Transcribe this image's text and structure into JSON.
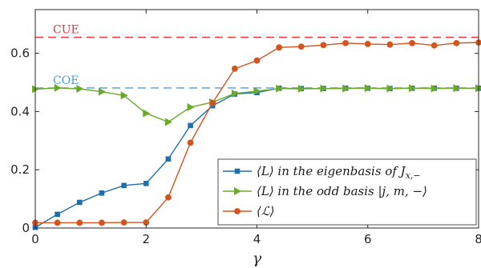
{
  "chart_data": {
    "type": "line",
    "xlabel": "γ",
    "ylabel": "",
    "xlim": [
      0,
      8
    ],
    "ylim": [
      0,
      0.75
    ],
    "xticks": [
      0,
      2,
      4,
      6,
      8
    ],
    "yticks": [
      0,
      0.2,
      0.4,
      0.6
    ],
    "ytick_labels": [
      "0",
      "0.2",
      "0.4",
      "0.6"
    ],
    "grid": false,
    "legend_position": "lower-right",
    "reference_lines": [
      {
        "name": "CUE",
        "y": 0.655,
        "color": "#e8303a",
        "style": "dashed"
      },
      {
        "name": "COE",
        "y": 0.481,
        "color": "#4a9ed6",
        "style": "dashed"
      }
    ],
    "series": [
      {
        "name": "⟨L⟩ in the eigenbasis of J_{x,−}",
        "legend_parts": {
          "main": "⟨L⟩ in the eigenbasis of J",
          "sub": "x,−"
        },
        "color": "#1f6fae",
        "marker": "square",
        "x": [
          0,
          0.4,
          0.8,
          1.2,
          1.6,
          2.0,
          2.4,
          2.8,
          3.2,
          3.6,
          4.0,
          4.4,
          4.8,
          5.2,
          5.6,
          6.0,
          6.4,
          6.8,
          7.2,
          7.6,
          8.0
        ],
        "y": [
          0.002,
          0.047,
          0.088,
          0.12,
          0.146,
          0.153,
          0.237,
          0.352,
          0.42,
          0.46,
          0.465,
          0.48,
          0.479,
          0.479,
          0.48,
          0.48,
          0.479,
          0.48,
          0.48,
          0.48,
          0.48
        ]
      },
      {
        "name": "⟨L⟩ in the odd basis |j, m, −⟩",
        "legend_parts": {
          "main": "⟨L⟩ in the odd basis |j, m, −⟩",
          "sub": ""
        },
        "color": "#6aaa2a",
        "marker": "triangle-right",
        "x": [
          0,
          0.4,
          0.8,
          1.2,
          1.6,
          2.0,
          2.4,
          2.8,
          3.2,
          3.6,
          4.0,
          4.4,
          4.8,
          5.2,
          5.6,
          6.0,
          6.4,
          6.8,
          7.2,
          7.6,
          8.0
        ],
        "y": [
          0.477,
          0.481,
          0.478,
          0.468,
          0.455,
          0.394,
          0.364,
          0.415,
          0.432,
          0.462,
          0.47,
          0.479,
          0.478,
          0.479,
          0.479,
          0.48,
          0.479,
          0.48,
          0.479,
          0.48,
          0.48
        ]
      },
      {
        "name": "⟨ℒ⟩",
        "legend_parts": {
          "main": "⟨ℒ⟩",
          "sub": ""
        },
        "color": "#d4531f",
        "marker": "circle",
        "x": [
          0,
          0.4,
          0.8,
          1.2,
          1.6,
          2.0,
          2.4,
          2.8,
          3.2,
          3.6,
          4.0,
          4.4,
          4.8,
          5.2,
          5.6,
          6.0,
          6.4,
          6.8,
          7.2,
          7.6,
          8.0
        ],
        "y": [
          0.018,
          0.018,
          0.018,
          0.018,
          0.019,
          0.019,
          0.105,
          0.293,
          0.43,
          0.547,
          0.575,
          0.62,
          0.623,
          0.628,
          0.635,
          0.632,
          0.63,
          0.635,
          0.627,
          0.635,
          0.637
        ]
      }
    ]
  }
}
